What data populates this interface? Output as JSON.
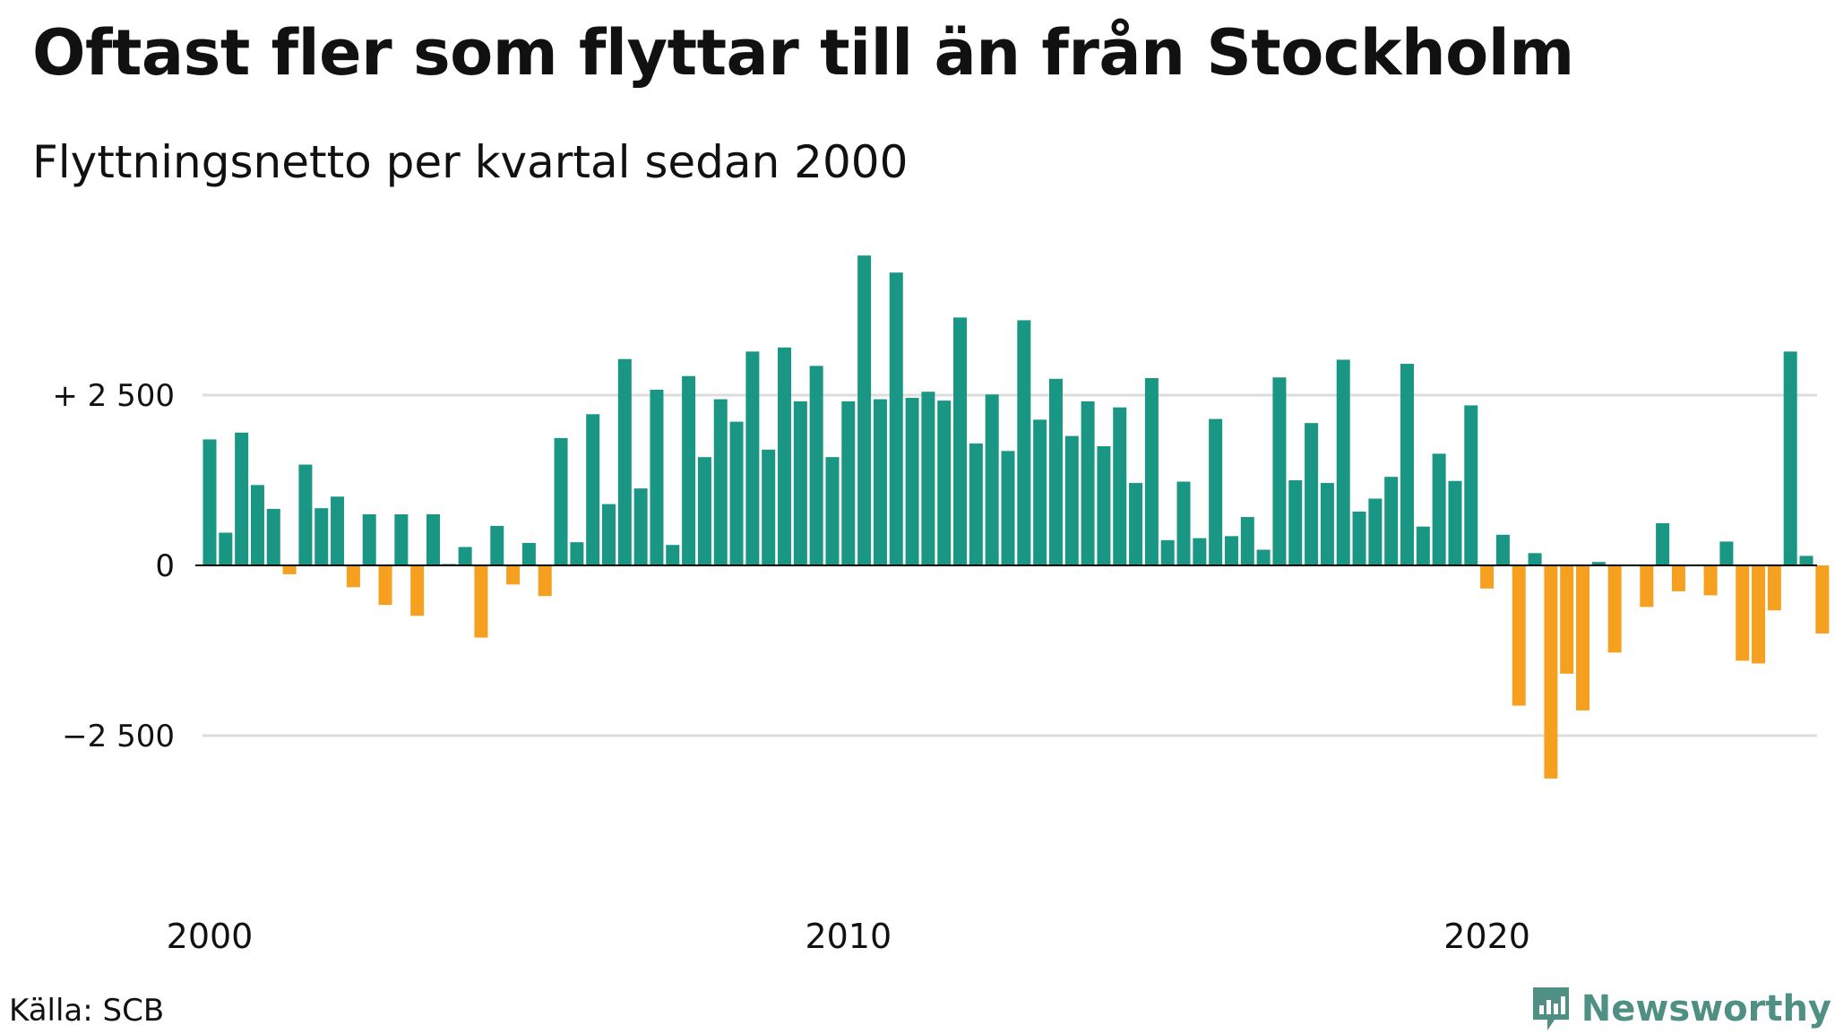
{
  "title": "Oftast fler som flyttar till än från Stockholm",
  "subtitle": "Flyttningsnetto per kvartal sedan 2000",
  "source": "Källa: SCB",
  "brand": {
    "name": "Newsworthy",
    "icon": "newsworthy-logo-icon",
    "color": "#4f8f84"
  },
  "colors": {
    "positive": "#1a9685",
    "negative": "#f5a01f",
    "grid": "#dddddd",
    "zero": "#000000"
  },
  "chart_data": {
    "type": "bar",
    "title": "Oftast fler som flyttar till än från Stockholm",
    "subtitle": "Flyttningsnetto per kvartal sedan 2000",
    "xlabel": "",
    "ylabel": "",
    "ylim": [
      -4500,
      4800
    ],
    "yticks": [
      2500,
      0,
      -2500
    ],
    "ytick_labels": [
      "+ 2 500",
      "0",
      "−2 500"
    ],
    "xticks": [
      2000,
      2010,
      2020
    ],
    "xtick_labels": [
      "2000",
      "2010",
      "2020"
    ],
    "grid": "horizontal",
    "x_start": 2000,
    "periods_per_year": 4,
    "values": [
      1850,
      480,
      1950,
      1180,
      830,
      -130,
      1480,
      840,
      1010,
      -320,
      750,
      -580,
      750,
      -740,
      750,
      20,
      270,
      -1060,
      580,
      -280,
      330,
      -450,
      1870,
      340,
      2220,
      900,
      3030,
      1130,
      2580,
      300,
      2780,
      1590,
      2440,
      2110,
      3140,
      1700,
      3200,
      2410,
      2930,
      1590,
      2410,
      4550,
      2440,
      4300,
      2460,
      2550,
      2420,
      3640,
      1790,
      2510,
      1680,
      3600,
      2140,
      2740,
      1900,
      2410,
      1750,
      2320,
      1210,
      2750,
      370,
      1230,
      400,
      2150,
      430,
      710,
      230,
      2760,
      1250,
      2090,
      1210,
      3020,
      790,
      980,
      1300,
      2960,
      570,
      1640,
      1240,
      2350,
      -340,
      450,
      -2060,
      180,
      -3130,
      -1590,
      -2130,
      50,
      -1280,
      0,
      -610,
      620,
      -380,
      0,
      -440,
      350,
      -1400,
      -1440,
      -660,
      3140,
      140,
      -1000
    ]
  }
}
